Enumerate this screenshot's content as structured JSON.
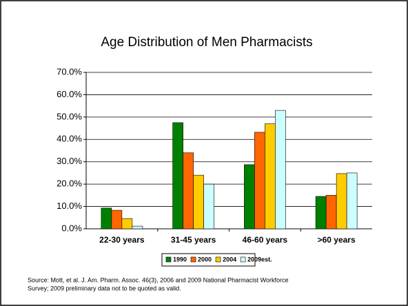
{
  "chart_data": {
    "type": "bar",
    "title": "Age Distribution of Men Pharmacists",
    "categories": [
      "22-30 years",
      "31-45 years",
      "46-60 years",
      ">60 years"
    ],
    "series": [
      {
        "name": "1990",
        "color": "#008000",
        "values": [
          9.3,
          47.5,
          28.7,
          14.5
        ]
      },
      {
        "name": "2000",
        "color": "#ff6600",
        "values": [
          8.3,
          34,
          43.2,
          15
        ]
      },
      {
        "name": "2004",
        "color": "#ffcc00",
        "values": [
          4.6,
          24,
          47,
          24.7
        ]
      },
      {
        "name": "2009est.",
        "color": "#ccffff",
        "values": [
          1.2,
          20,
          53,
          25
        ]
      }
    ],
    "ylim": [
      0,
      70
    ],
    "yticks": [
      {
        "value": 0,
        "label": "0.0%"
      },
      {
        "value": 10,
        "label": "10.0%"
      },
      {
        "value": 20,
        "label": "20.0%"
      },
      {
        "value": 30,
        "label": "30.0%"
      },
      {
        "value": 40,
        "label": "40.0%"
      },
      {
        "value": 50,
        "label": "50.0%"
      },
      {
        "value": 60,
        "label": "60.0%"
      },
      {
        "value": 70,
        "label": "70.0%"
      }
    ],
    "grid": true,
    "legend": "bottom",
    "source": [
      "Source: Mott, et al. J. Am. Pharm. Assoc. 46(3), 2006 and 2009 National Pharmacist Workforce",
      "Survey; 2009 preliminary data not to be quoted as valid."
    ]
  }
}
